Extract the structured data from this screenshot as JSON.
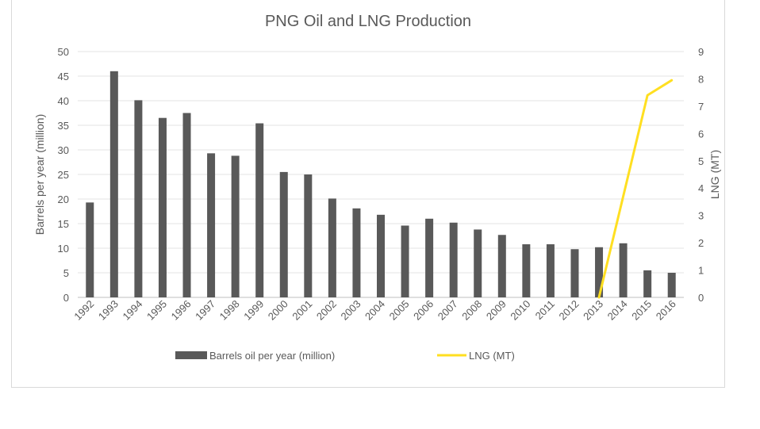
{
  "chart_data": {
    "type": "bar",
    "title": "PNG Oil and LNG Production",
    "xlabel": "",
    "ylabel": "Barrels per year (million)",
    "y2label": "LNG (MT)",
    "ylim": [
      0,
      50
    ],
    "y2lim": [
      0,
      9
    ],
    "yticks": [
      0,
      5,
      10,
      15,
      20,
      25,
      30,
      35,
      40,
      45,
      50
    ],
    "y2ticks": [
      0,
      1,
      2,
      3,
      4,
      5,
      6,
      7,
      8,
      9
    ],
    "categories": [
      "1992",
      "1993",
      "1994",
      "1995",
      "1996",
      "1997",
      "1998",
      "1999",
      "2000",
      "2001",
      "2002",
      "2003",
      "2004",
      "2005",
      "2006",
      "2007",
      "2008",
      "2009",
      "2010",
      "2011",
      "2012",
      "2013",
      "2014",
      "2015",
      "2016"
    ],
    "series": [
      {
        "name": "Barrels oil per year (million)",
        "type": "bar",
        "axis": "left",
        "color": "#595959",
        "values": [
          19.3,
          46,
          40.1,
          36.5,
          37.5,
          29.3,
          28.8,
          35.4,
          25.5,
          25,
          20.1,
          18.1,
          16.8,
          14.6,
          16,
          15.2,
          13.8,
          12.7,
          10.8,
          10.8,
          9.8,
          10.2,
          11,
          5.5,
          5
        ]
      },
      {
        "name": "LNG (MT)",
        "type": "line",
        "axis": "right",
        "color": "#ffdf21",
        "values": [
          null,
          null,
          null,
          null,
          null,
          null,
          null,
          null,
          null,
          null,
          null,
          null,
          null,
          null,
          null,
          null,
          null,
          null,
          null,
          null,
          null,
          0,
          3.7,
          7.4,
          7.95
        ]
      }
    ],
    "grid": true,
    "legend_position": "bottom"
  }
}
